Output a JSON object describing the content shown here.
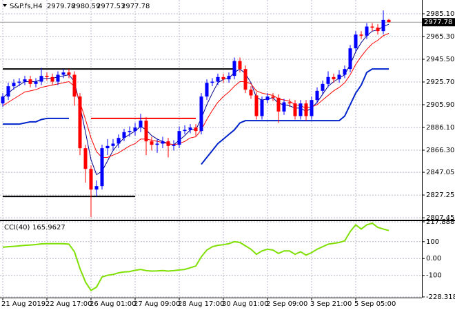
{
  "chart_data": [
    {
      "type": "candlestick",
      "symbol": "S&P.fs,H4",
      "categories": [
        "21 Aug 2019",
        null,
        null,
        null,
        null,
        null,
        null,
        null,
        "22 Aug 17:00",
        null,
        null,
        null,
        null,
        null,
        null,
        null,
        "26 Aug 01:00",
        null,
        null,
        null,
        null,
        null,
        null,
        null,
        "27 Aug 09:00",
        null,
        null,
        null,
        null,
        null,
        null,
        null,
        "28 Aug 17:00",
        null,
        null,
        null,
        null,
        null,
        null,
        null,
        "30 Aug 01:00",
        null,
        null,
        null,
        null,
        null,
        null,
        null,
        "2 Sep 09:00",
        null,
        null,
        null,
        null,
        null,
        null,
        null,
        "3 Sep 21:00",
        null,
        null,
        null,
        null,
        null,
        null,
        null,
        "5 Sep 05:00",
        null,
        null,
        null,
        null,
        null,
        null
      ],
      "open": [
        2907,
        2913,
        2922,
        2925,
        2926,
        2928,
        2924,
        2926,
        2931,
        2930,
        2926,
        2932,
        2934,
        2932,
        2913,
        2868,
        2850,
        2832,
        2835,
        2868,
        2870,
        2872,
        2877,
        2882,
        2883,
        2886,
        2892,
        2874,
        2871,
        2872,
        2874,
        2870,
        2871,
        2883,
        2884,
        2886,
        2883,
        2913,
        2925,
        2926,
        2930,
        2928,
        2931,
        2944,
        2937,
        2919,
        2914,
        2896,
        2910,
        2913,
        2912,
        2900,
        2908,
        2907,
        2896,
        2907,
        2896,
        2910,
        2918,
        2924,
        2930,
        2928,
        2932,
        2937,
        2955,
        2967,
        2966,
        2974,
        2973,
        2970,
        2979.78
      ],
      "high": [
        2916,
        2925,
        2928,
        2929,
        2931,
        2931,
        2929,
        2938,
        2934,
        2933,
        2935,
        2937,
        2937,
        2935,
        2916,
        2871,
        2853,
        2840,
        2871,
        2876,
        2876,
        2880,
        2885,
        2887,
        2890,
        2898,
        2895,
        2878,
        2876,
        2878,
        2877,
        2875,
        2887,
        2888,
        2889,
        2889,
        2916,
        2928,
        2929,
        2933,
        2933,
        2934,
        2947,
        2947,
        2940,
        2922,
        2917,
        2913,
        2916,
        2916,
        2915,
        2911,
        2911,
        2910,
        2910,
        2910,
        2913,
        2921,
        2927,
        2935,
        2933,
        2936,
        2940,
        2958,
        2970,
        2970,
        2977,
        2977,
        2976,
        2988,
        2980.59
      ],
      "low": [
        2904,
        2910,
        2919,
        2922,
        2923,
        2921,
        2921,
        2923,
        2927,
        2923,
        2923,
        2929,
        2929,
        2905,
        2862,
        2838,
        2808,
        2826,
        2832,
        2862,
        2866,
        2868,
        2874,
        2878,
        2879,
        2882,
        2862,
        2866,
        2864,
        2868,
        2860,
        2866,
        2868,
        2880,
        2881,
        2879,
        2880,
        2910,
        2922,
        2923,
        2925,
        2925,
        2928,
        2934,
        2916,
        2911,
        2893,
        2893,
        2907,
        2909,
        2890,
        2897,
        2904,
        2893,
        2893,
        2892,
        2893,
        2907,
        2915,
        2921,
        2925,
        2925,
        2929,
        2934,
        2952,
        2963,
        2963,
        2970,
        2967,
        2967,
        2977.53
      ],
      "close": [
        2913,
        2922,
        2925,
        2926,
        2928,
        2924,
        2926,
        2931,
        2930,
        2926,
        2932,
        2934,
        2932,
        2913,
        2868,
        2850,
        2832,
        2835,
        2868,
        2870,
        2872,
        2877,
        2882,
        2883,
        2886,
        2892,
        2874,
        2871,
        2872,
        2874,
        2870,
        2871,
        2883,
        2884,
        2886,
        2883,
        2913,
        2925,
        2926,
        2930,
        2928,
        2931,
        2944,
        2937,
        2919,
        2914,
        2896,
        2910,
        2913,
        2912,
        2900,
        2908,
        2907,
        2896,
        2907,
        2896,
        2910,
        2918,
        2924,
        2930,
        2928,
        2932,
        2937,
        2955,
        2967,
        2966,
        2974,
        2973,
        2970,
        2979.78,
        2977.78
      ],
      "up_color": "#0000ff",
      "down_color": "#ff0000",
      "ylim": [
        2806.3,
        2997.1
      ],
      "yticks": [
        {
          "value": 2985.1,
          "label": "2985.10"
        },
        {
          "value": 2965.3,
          "label": "2965.30"
        },
        {
          "value": 2945.5,
          "label": "2945.50"
        },
        {
          "value": 2925.7,
          "label": "2925.70"
        },
        {
          "value": 2905.9,
          "label": "2905.90"
        },
        {
          "value": 2886.1,
          "label": "2886.10"
        },
        {
          "value": 2866.3,
          "label": "2866.30"
        },
        {
          "value": 2847.05,
          "label": "2847.05"
        },
        {
          "value": 2827.25,
          "label": "2827.25"
        },
        {
          "value": 2807.45,
          "label": "2807.45"
        }
      ],
      "grid": true,
      "lines": [
        {
          "color": "#00008b",
          "width": 1,
          "values": [
            2912,
            2916,
            2920,
            2923,
            2926,
            2926,
            2926,
            2928,
            2929,
            2929,
            2930,
            2931,
            2932,
            2926,
            2905,
            2882,
            2858,
            2845,
            2848,
            2857,
            2866,
            2872,
            2877,
            2880,
            2883,
            2887,
            2884,
            2879,
            2876,
            2874,
            2872,
            2871,
            2875,
            2879,
            2884,
            2884,
            2894,
            2906,
            2916,
            2925,
            2928,
            2929,
            2934,
            2937,
            2933,
            2925,
            2912,
            2910,
            2911,
            2912,
            2907,
            2906,
            2905,
            2903,
            2903,
            2900,
            2903,
            2908,
            2915,
            2922,
            2926,
            2929,
            2932,
            2941,
            2952,
            2960,
            2966,
            2970,
            2971,
            2974,
            2976
          ]
        },
        {
          "color": "#ff0000",
          "width": 1,
          "values": [
            2905,
            2908,
            2911,
            2914,
            2917,
            2918,
            2919,
            2921,
            2922,
            2923,
            2924,
            2925,
            2926,
            2922,
            2908,
            2893,
            2877,
            2865,
            2860,
            2860,
            2862,
            2864,
            2867,
            2870,
            2872,
            2876,
            2876,
            2875,
            2874,
            2873,
            2872,
            2871,
            2872,
            2874,
            2877,
            2878,
            2884,
            2893,
            2901,
            2908,
            2913,
            2917,
            2922,
            2926,
            2926,
            2924,
            2918,
            2916,
            2915,
            2914,
            2911,
            2910,
            2909,
            2906,
            2905,
            2903,
            2904,
            2906,
            2910,
            2914,
            2918,
            2921,
            2925,
            2932,
            2941,
            2948,
            2954,
            2959,
            2962,
            2966,
            2968
          ]
        },
        {
          "color": "#0022cc",
          "width": 2,
          "values": [
            2889,
            2889,
            2889,
            2889,
            2890,
            2891,
            2891,
            2893,
            2894,
            2894,
            2894,
            2894,
            2894,
            null,
            null,
            null,
            null,
            null,
            null,
            null,
            null,
            null,
            null,
            null,
            null,
            null,
            null,
            null,
            null,
            null,
            null,
            null,
            null,
            null,
            null,
            null,
            2854,
            2860,
            2866,
            2872,
            2876,
            2880,
            2884,
            2890,
            2892,
            2892,
            2892,
            2892,
            2892,
            2892,
            2892,
            2892,
            2892,
            2892,
            2892,
            2892,
            2892,
            2892,
            2892,
            2892,
            2892,
            2892,
            2896,
            2906,
            2916,
            2923,
            2934,
            2937,
            2937,
            2937,
            2937
          ]
        }
      ],
      "levels": [
        {
          "value": 2937,
          "start": 0,
          "end": 42,
          "color": "#000000"
        },
        {
          "value": 2826,
          "start": 0,
          "end": 24,
          "color": "#000000"
        },
        {
          "value": 2894,
          "start": 16,
          "end": 35,
          "color": "#ff0000"
        }
      ]
    },
    {
      "type": "line",
      "title": "CCI(40)",
      "color": "#7fe000",
      "values": [
        67,
        70,
        72,
        75,
        78,
        80,
        83,
        87,
        88,
        88,
        88,
        88,
        85,
        40,
        -60,
        -140,
        -190,
        -170,
        -110,
        -100,
        -95,
        -85,
        -80,
        -78,
        -70,
        -65,
        -72,
        -75,
        -74,
        -72,
        -75,
        -72,
        -68,
        -65,
        -55,
        -45,
        10,
        50,
        70,
        78,
        82,
        88,
        100,
        95,
        75,
        55,
        25,
        45,
        55,
        50,
        30,
        45,
        45,
        25,
        40,
        20,
        35,
        55,
        70,
        85,
        90,
        95,
        105,
        160,
        200,
        175,
        200,
        210,
        185,
        175,
        165.9627
      ],
      "ylim": [
        -228.3184,
        217.8884
      ],
      "yticks": [
        217.8884,
        100,
        {
          "value": 0,
          "label": "0.00"
        },
        -100,
        -228.3184
      ],
      "grid": true
    }
  ]
}
